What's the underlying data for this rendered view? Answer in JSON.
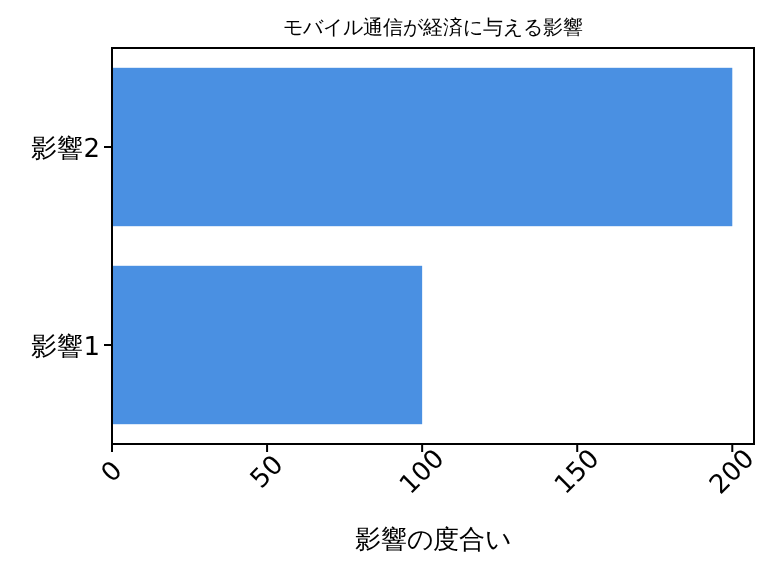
{
  "chart_data": {
    "type": "bar",
    "orientation": "horizontal",
    "title": "モバイル通信が経済に与える影響",
    "xlabel": "影響の度合い",
    "categories": [
      "影響2",
      "影響1"
    ],
    "values": [
      200,
      100
    ],
    "color": "#4a90e2",
    "xlim": [
      0,
      207
    ],
    "xticks": [
      0,
      50,
      100,
      150,
      200
    ],
    "grid": false
  }
}
